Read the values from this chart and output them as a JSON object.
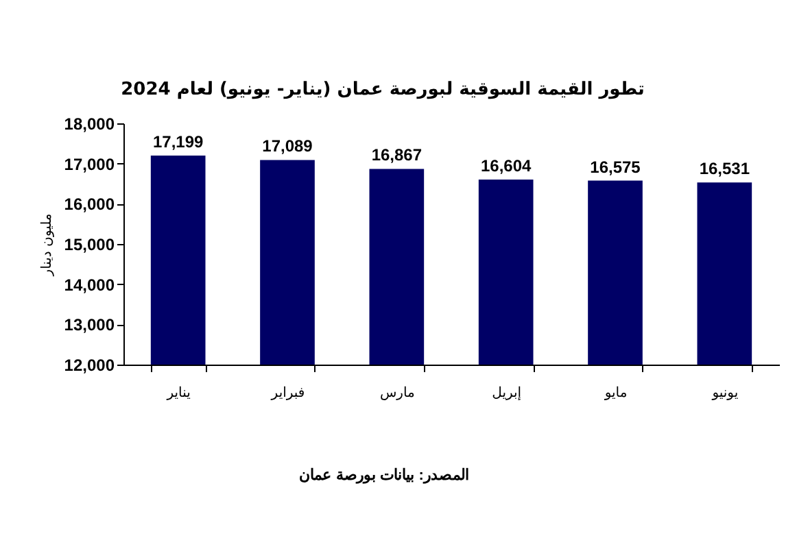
{
  "chart_data": {
    "type": "bar",
    "title": "تطور القيمة السوقية لبورصة عمان (يناير- يونيو) لعام 2024",
    "ylabel": "مليون دينار",
    "categories": [
      "يناير",
      "فبراير",
      "مارس",
      "إبريل",
      "مايو",
      "يونيو"
    ],
    "values": [
      17199,
      17089,
      16867,
      16604,
      16575,
      16531
    ],
    "color": "#000066",
    "value_labels": [
      "17,199",
      "17,089",
      "16,867",
      "16,604",
      "16,575",
      "16,531"
    ],
    "ylim": [
      12000,
      18000
    ],
    "yticks": [
      {
        "value": 12000,
        "label": "12,000"
      },
      {
        "value": 13000,
        "label": "13,000"
      },
      {
        "value": 14000,
        "label": "14,000"
      },
      {
        "value": 15000,
        "label": "15,000"
      },
      {
        "value": 16000,
        "label": "16,000"
      },
      {
        "value": 17000,
        "label": "17,000"
      },
      {
        "value": 18000,
        "label": "18,000"
      }
    ],
    "grid": false,
    "annotations": [
      "المصدر: بيانات بورصة عمان"
    ]
  }
}
